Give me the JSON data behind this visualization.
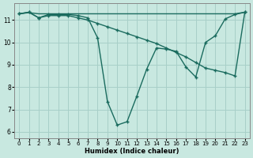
{
  "xlabel": "Humidex (Indice chaleur)",
  "xlim": [
    -0.5,
    23.5
  ],
  "ylim": [
    5.7,
    11.75
  ],
  "xticks": [
    0,
    1,
    2,
    3,
    4,
    5,
    6,
    7,
    8,
    9,
    10,
    11,
    12,
    13,
    14,
    15,
    16,
    17,
    18,
    19,
    20,
    21,
    22,
    23
  ],
  "yticks": [
    6,
    7,
    8,
    9,
    10,
    11
  ],
  "bg_color": "#c8e8e0",
  "grid_color": "#a8cfc8",
  "line_color": "#1a6b5e",
  "line1_x": [
    0,
    1,
    2,
    3,
    4,
    5,
    6,
    7,
    8,
    9,
    10,
    11,
    12,
    13,
    14,
    15,
    16,
    17,
    18,
    19,
    20,
    21,
    22,
    23
  ],
  "line1_y": [
    11.28,
    11.35,
    11.1,
    11.25,
    11.25,
    11.25,
    11.2,
    11.1,
    10.2,
    7.35,
    6.3,
    6.45,
    7.6,
    8.8,
    9.75,
    9.7,
    9.6,
    8.9,
    8.45,
    10.0,
    10.3,
    11.05,
    11.25,
    11.35
  ],
  "line2_x": [
    0,
    1,
    2,
    3,
    4,
    5,
    6,
    7,
    8,
    9,
    10,
    11,
    12,
    13,
    14,
    15,
    16,
    17,
    18,
    19,
    20,
    21,
    22,
    23
  ],
  "line2_y": [
    11.28,
    11.35,
    11.1,
    11.2,
    11.2,
    11.2,
    11.1,
    11.0,
    10.85,
    10.7,
    10.55,
    10.4,
    10.25,
    10.1,
    9.95,
    9.75,
    9.55,
    9.35,
    9.1,
    8.85,
    8.75,
    8.65,
    8.5,
    11.35
  ],
  "line3_x": [
    0,
    1,
    2,
    3,
    4,
    5,
    6,
    7,
    8,
    9,
    10,
    11,
    12,
    13,
    14,
    15,
    16,
    17,
    18,
    19,
    20,
    21,
    22,
    23
  ],
  "line3_y": [
    11.28,
    11.33,
    11.28,
    11.28,
    11.28,
    11.28,
    11.28,
    11.28,
    11.28,
    11.28,
    11.28,
    11.28,
    11.28,
    11.28,
    11.28,
    11.28,
    11.28,
    11.28,
    11.28,
    11.28,
    11.28,
    11.28,
    11.28,
    11.35
  ]
}
